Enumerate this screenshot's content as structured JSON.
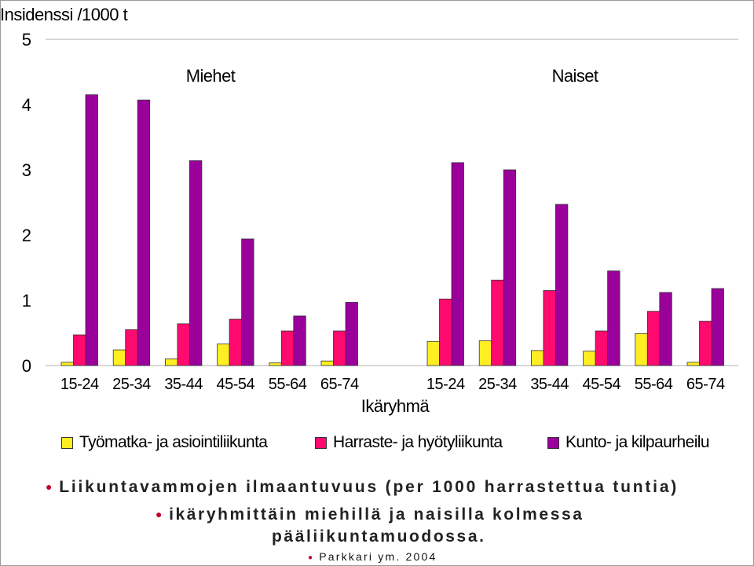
{
  "chart_data": {
    "type": "bar",
    "ylabel": "Insidenssi /1000 t",
    "xlabel": "Ikäryhmä",
    "ylim": [
      0,
      5
    ],
    "yticks": [
      0,
      1,
      2,
      3,
      4,
      5
    ],
    "grid": false,
    "legend_position": "bottom",
    "groups": [
      {
        "name": "Miehet",
        "categories": [
          "15-24",
          "25-34",
          "35-44",
          "45-54",
          "55-64",
          "65-74"
        ],
        "series": [
          {
            "name": "Työmatka- ja asiointiliikunta",
            "values": [
              0.05,
              0.24,
              0.1,
              0.33,
              0.04,
              0.07
            ]
          },
          {
            "name": "Harraste- ja hyötyliikunta",
            "values": [
              0.47,
              0.55,
              0.64,
              0.71,
              0.53,
              0.53
            ]
          },
          {
            "name": "Kunto- ja kilpaurheilu",
            "values": [
              4.15,
              4.07,
              3.14,
              1.94,
              0.76,
              0.97
            ]
          }
        ]
      },
      {
        "name": "Naiset",
        "categories": [
          "15-24",
          "25-34",
          "35-44",
          "45-54",
          "55-64",
          "65-74"
        ],
        "series": [
          {
            "name": "Työmatka- ja asiointiliikunta",
            "values": [
              0.37,
              0.38,
              0.23,
              0.22,
              0.49,
              0.05
            ]
          },
          {
            "name": "Harraste- ja hyötyliikunta",
            "values": [
              1.02,
              1.31,
              1.15,
              0.53,
              0.83,
              0.68
            ]
          },
          {
            "name": "Kunto- ja kilpaurheilu",
            "values": [
              3.11,
              3.0,
              2.47,
              1.45,
              1.12,
              1.18
            ]
          }
        ]
      }
    ]
  },
  "colors": {
    "series": [
      "#ffee22",
      "#ff0a6e",
      "#9a009a"
    ],
    "axis": "#b0b0b0"
  },
  "legend": [
    {
      "label": "Työmatka- ja asiointiliikunta",
      "color": "#ffee22"
    },
    {
      "label": "Harraste- ja hyötyliikunta",
      "color": "#ff0a6e"
    },
    {
      "label": "Kunto- ja kilpaurheilu",
      "color": "#9a009a"
    }
  ],
  "captions": {
    "line1": "Liikuntavammojen ilmaantuvuus (per 1000 harrastettua tuntia)",
    "line2": "ikäryhmittäin miehillä ja naisilla kolmessa",
    "line3": "pääliikuntamuodossa.",
    "source": "Parkkari ym. 2004"
  }
}
